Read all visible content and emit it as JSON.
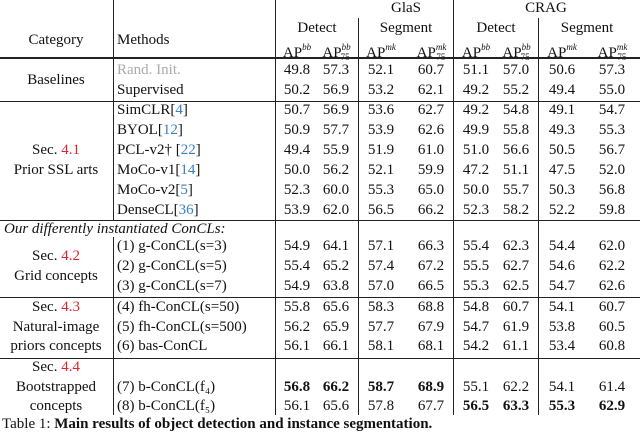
{
  "header": {
    "category": "Category",
    "methods": "Methods",
    "datasets": [
      "GlaS",
      "CRAG"
    ],
    "tasks": [
      "Detect",
      "Segment",
      "Detect",
      "Segment"
    ],
    "metrics": [
      {
        "base": "AP",
        "sup": "bb",
        "sub": ""
      },
      {
        "base": "AP",
        "sup": "bb",
        "sub": "75"
      },
      {
        "base": "AP",
        "sup": "mk",
        "sub": ""
      },
      {
        "base": "AP",
        "sup": "mk",
        "sub": "75"
      },
      {
        "base": "AP",
        "sup": "bb",
        "sub": ""
      },
      {
        "base": "AP",
        "sup": "bb",
        "sub": "75"
      },
      {
        "base": "AP",
        "sup": "mk",
        "sub": ""
      },
      {
        "base": "AP",
        "sup": "mk",
        "sub": "75"
      }
    ]
  },
  "groups": [
    {
      "category": [
        "Baselines"
      ],
      "sec": "",
      "rows": [
        {
          "method": "Rand. Init.",
          "ref": "",
          "gray": true,
          "values": [
            "49.8",
            "57.3",
            "52.1",
            "60.7",
            "51.1",
            "57.0",
            "50.6",
            "57.3"
          ],
          "bold": []
        },
        {
          "method": "Supervised",
          "ref": "",
          "values": [
            "50.2",
            "56.9",
            "53.2",
            "62.1",
            "49.2",
            "55.2",
            "49.4",
            "55.0"
          ],
          "bold": []
        }
      ]
    },
    {
      "category": [
        "Prior SSL arts"
      ],
      "sec": "4.1",
      "rows": [
        {
          "method": "SimCLR",
          "ref": "4",
          "values": [
            "50.7",
            "56.9",
            "53.6",
            "62.7",
            "49.2",
            "54.8",
            "49.1",
            "54.7"
          ],
          "bold": []
        },
        {
          "method": "BYOL",
          "ref": "12",
          "values": [
            "50.9",
            "57.7",
            "53.9",
            "62.6",
            "49.9",
            "55.8",
            "49.3",
            "55.3"
          ],
          "bold": []
        },
        {
          "method": "PCL-v2† ",
          "ref": "22",
          "values": [
            "49.4",
            "55.9",
            "51.9",
            "61.0",
            "51.0",
            "56.6",
            "50.5",
            "56.7"
          ],
          "bold": []
        },
        {
          "method": "MoCo-v1",
          "ref": "14",
          "values": [
            "50.0",
            "56.2",
            "52.1",
            "59.9",
            "47.2",
            "51.1",
            "47.5",
            "52.0"
          ],
          "bold": []
        },
        {
          "method": "MoCo-v2",
          "ref": "5",
          "values": [
            "52.3",
            "60.0",
            "55.3",
            "65.0",
            "50.0",
            "55.7",
            "50.3",
            "56.8"
          ],
          "bold": []
        },
        {
          "method": "DenseCL",
          "ref": "36",
          "values": [
            "53.9",
            "62.0",
            "56.5",
            "66.2",
            "52.3",
            "58.2",
            "52.2",
            "59.8"
          ],
          "bold": []
        }
      ]
    },
    {
      "category": [
        "Grid concepts"
      ],
      "sec": "4.2",
      "rows": [
        {
          "method": "(1) g-ConCL(s=3)",
          "ref": "",
          "values": [
            "54.9",
            "64.1",
            "57.1",
            "66.3",
            "55.4",
            "62.3",
            "54.4",
            "62.0"
          ],
          "bold": []
        },
        {
          "method": "(2) g-ConCL(s=5)",
          "ref": "",
          "values": [
            "55.4",
            "65.2",
            "57.4",
            "67.2",
            "55.5",
            "62.7",
            "54.6",
            "62.2"
          ],
          "bold": []
        },
        {
          "method": "(3) g-ConCL(s=7)",
          "ref": "",
          "values": [
            "54.9",
            "63.8",
            "57.0",
            "66.5",
            "55.3",
            "62.5",
            "54.7",
            "62.6"
          ],
          "bold": []
        }
      ]
    },
    {
      "category": [
        "Natural-image",
        "priors concepts"
      ],
      "sec": "4.3",
      "rows": [
        {
          "method": "(4) fh-ConCL(s=50)",
          "ref": "",
          "values": [
            "55.8",
            "65.6",
            "58.3",
            "68.8",
            "54.8",
            "60.7",
            "54.1",
            "60.7"
          ],
          "bold": []
        },
        {
          "method": "(5) fh-ConCL(s=500)",
          "ref": "",
          "values": [
            "56.2",
            "65.9",
            "57.7",
            "67.9",
            "54.7",
            "61.9",
            "53.8",
            "60.5"
          ],
          "bold": []
        },
        {
          "method": "(6) bas-ConCL",
          "ref": "",
          "values": [
            "56.1",
            "66.1",
            "58.1",
            "68.1",
            "54.2",
            "61.1",
            "53.4",
            "60.8"
          ],
          "bold": []
        }
      ]
    },
    {
      "category": [
        "Bootstrapped",
        "concepts"
      ],
      "sec": "4.4",
      "rows": [
        {
          "method": "(7) b-ConCL(f₄)",
          "ref": "",
          "values": [
            "56.8",
            "66.2",
            "58.7",
            "68.9",
            "55.1",
            "62.2",
            "54.1",
            "61.4"
          ],
          "bold": [
            0,
            1,
            2,
            3
          ]
        },
        {
          "method": "(8) b-ConCL(f₅)",
          "ref": "",
          "values": [
            "56.1",
            "65.6",
            "57.8",
            "67.7",
            "56.5",
            "63.3",
            "55.3",
            "62.9"
          ],
          "bold": [
            4,
            5,
            6,
            7
          ]
        }
      ]
    }
  ],
  "sec_prefix": "Sec. ",
  "ours_label": "Our differently instantiated ConCLs:",
  "caption": "Table 1: Main results of object detection and instance segmentation."
}
